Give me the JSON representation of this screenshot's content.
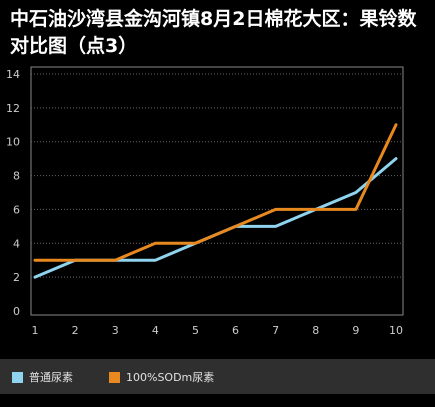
{
  "chart_data": {
    "type": "line",
    "title": "中石油沙湾县金沟河镇8月2日棉花大区：果铃数对比图（点3）",
    "categories": [
      "1",
      "2",
      "3",
      "4",
      "5",
      "6",
      "7",
      "8",
      "9",
      "10"
    ],
    "ylim": [
      0,
      14
    ],
    "yticks": [
      0,
      2,
      4,
      6,
      8,
      10,
      12,
      14
    ],
    "grid": true,
    "legend_position": "bottom",
    "series": [
      {
        "name": "普通尿素",
        "color": "#8fd3ef",
        "values": [
          2,
          3,
          3,
          3,
          4,
          5,
          5,
          6,
          7,
          9
        ]
      },
      {
        "name": "100%SODm尿素",
        "color": "#e8891f",
        "values": [
          3,
          3,
          3,
          4,
          4,
          5,
          6,
          6,
          6,
          11
        ]
      }
    ]
  }
}
